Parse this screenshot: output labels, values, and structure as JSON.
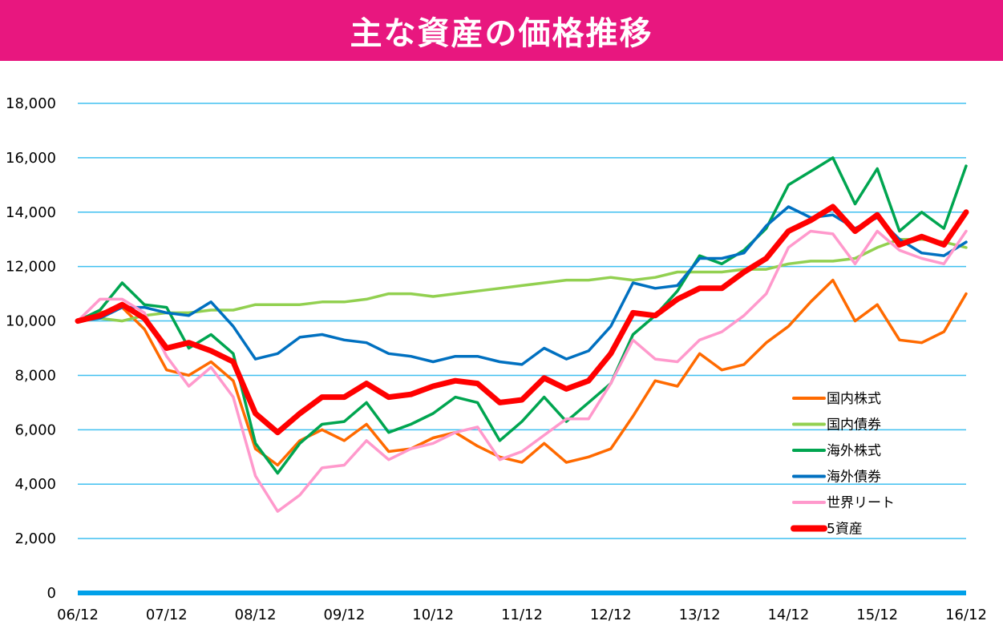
{
  "chart_data": {
    "type": "line",
    "title": "主な資産の価格推移",
    "xlabel": "",
    "ylabel": "",
    "ylim": [
      0,
      18000
    ],
    "yticks": [
      0,
      2000,
      4000,
      6000,
      8000,
      10000,
      12000,
      14000,
      16000,
      18000
    ],
    "ytick_labels": [
      "0",
      "2,000",
      "4,000",
      "6,000",
      "8,000",
      "10,000",
      "12,000",
      "14,000",
      "16,000",
      "18,000"
    ],
    "xtick_labels": [
      "06/12",
      "07/12",
      "08/12",
      "09/12",
      "10/12",
      "11/12",
      "12/12",
      "13/12",
      "14/12",
      "15/12",
      "16/12"
    ],
    "x_note_points_per_year": 4,
    "grid": true,
    "legend_position": "bottom-right",
    "series": [
      {
        "name": "国内株式",
        "color": "#ff6a00",
        "width": 3.5,
        "values": [
          10000,
          10300,
          10500,
          9700,
          8200,
          8000,
          8500,
          7800,
          5300,
          4700,
          5600,
          6000,
          5600,
          6200,
          5200,
          5300,
          5700,
          5900,
          5400,
          5000,
          4800,
          5500,
          4800,
          5000,
          5300,
          6500,
          7800,
          7600,
          8800,
          8200,
          8400,
          9200,
          9800,
          10700,
          11500,
          10000,
          10600,
          9300,
          9200,
          9600,
          11000
        ]
      },
      {
        "name": "国内債券",
        "color": "#92d050",
        "width": 3.5,
        "values": [
          10000,
          10100,
          10000,
          10200,
          10300,
          10300,
          10400,
          10400,
          10600,
          10600,
          10600,
          10700,
          10700,
          10800,
          11000,
          11000,
          10900,
          11000,
          11100,
          11200,
          11300,
          11400,
          11500,
          11500,
          11600,
          11500,
          11600,
          11800,
          11800,
          11800,
          11900,
          11900,
          12100,
          12200,
          12200,
          12300,
          12700,
          13000,
          13000,
          12900,
          12700
        ]
      },
      {
        "name": "海外株式",
        "color": "#00a550",
        "width": 3.5,
        "values": [
          10000,
          10400,
          11400,
          10600,
          10500,
          9000,
          9500,
          8800,
          5500,
          4400,
          5500,
          6200,
          6300,
          7000,
          5900,
          6200,
          6600,
          7200,
          7000,
          5600,
          6300,
          7200,
          6300,
          7000,
          7700,
          9500,
          10200,
          11100,
          12400,
          12100,
          12600,
          13400,
          15000,
          15500,
          16000,
          14300,
          15600,
          13300,
          14000,
          13400,
          15700
        ]
      },
      {
        "name": "海外債券",
        "color": "#0070c0",
        "width": 3.5,
        "values": [
          10000,
          10100,
          10500,
          10500,
          10300,
          10200,
          10700,
          9800,
          8600,
          8800,
          9400,
          9500,
          9300,
          9200,
          8800,
          8700,
          8500,
          8700,
          8700,
          8500,
          8400,
          9000,
          8600,
          8900,
          9800,
          11400,
          11200,
          11300,
          12300,
          12300,
          12500,
          13500,
          14200,
          13800,
          13900,
          13400,
          13800,
          13000,
          12500,
          12400,
          12900
        ]
      },
      {
        "name": "世界リート",
        "color": "#ff99cc",
        "width": 3.5,
        "values": [
          10000,
          10800,
          10800,
          10300,
          8700,
          7600,
          8300,
          7200,
          4300,
          3000,
          3600,
          4600,
          4700,
          5600,
          4900,
          5300,
          5500,
          5900,
          6100,
          4900,
          5200,
          5800,
          6400,
          6400,
          7700,
          9300,
          8600,
          8500,
          9300,
          9600,
          10200,
          11000,
          12700,
          13300,
          13200,
          12100,
          13300,
          12600,
          12300,
          12100,
          13300
        ]
      },
      {
        "name": "5資産",
        "color": "#ff0000",
        "width": 7,
        "values": [
          10000,
          10200,
          10600,
          10100,
          9000,
          9200,
          8900,
          8500,
          6600,
          5900,
          6600,
          7200,
          7200,
          7700,
          7200,
          7300,
          7600,
          7800,
          7700,
          7000,
          7100,
          7900,
          7500,
          7800,
          8800,
          10300,
          10200,
          10800,
          11200,
          11200,
          11800,
          12300,
          13300,
          13700,
          14200,
          13300,
          13900,
          12800,
          13100,
          12800,
          14000
        ]
      }
    ]
  },
  "colors": {
    "title_bg": "#e8177f",
    "grid": "#40c0f0",
    "baseline": "#00a0e9"
  }
}
